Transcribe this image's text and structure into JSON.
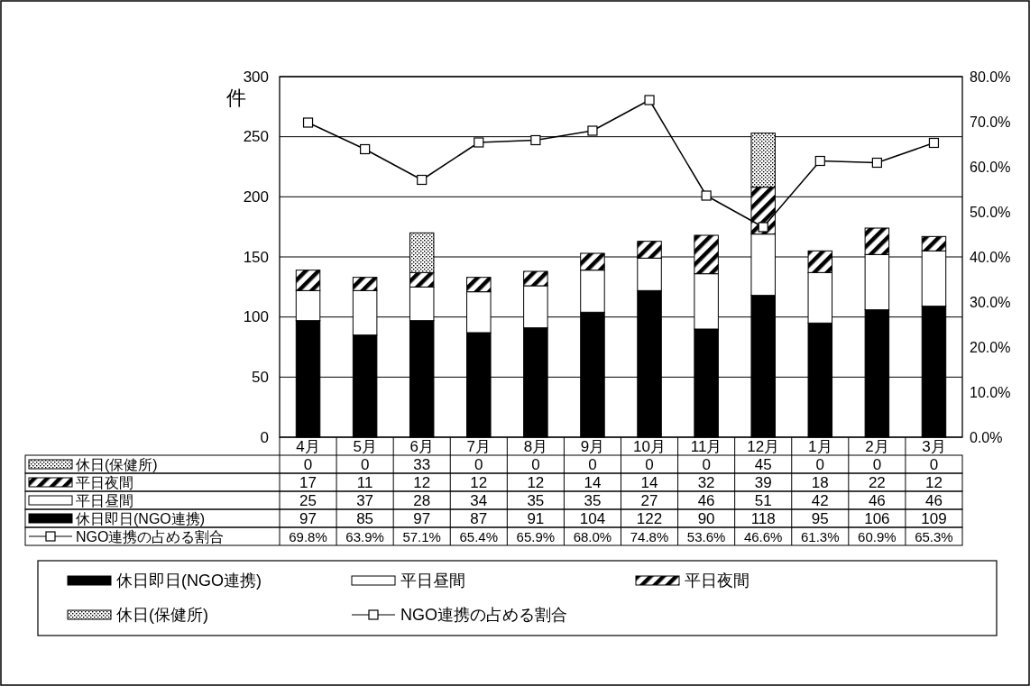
{
  "chart_data": {
    "type": "bar",
    "stacked": true,
    "ylabel": "件",
    "categories": [
      "4月",
      "5月",
      "6月",
      "7月",
      "8月",
      "9月",
      "10月",
      "11月",
      "12月",
      "1月",
      "2月",
      "3月"
    ],
    "series": [
      {
        "name": "休日即日(NGO連携)",
        "color": "#000000",
        "values": [
          97,
          85,
          97,
          87,
          91,
          104,
          122,
          90,
          118,
          95,
          106,
          109
        ]
      },
      {
        "name": "平日昼間",
        "color": "#ffffff",
        "values": [
          25,
          37,
          28,
          34,
          35,
          35,
          27,
          46,
          51,
          42,
          46,
          46
        ]
      },
      {
        "name": "平日夜間",
        "color": "#000000",
        "values": [
          17,
          11,
          12,
          12,
          12,
          14,
          14,
          32,
          39,
          18,
          22,
          12
        ]
      },
      {
        "name": "休日(保健所)",
        "color": "#000000",
        "values": [
          0,
          0,
          33,
          0,
          0,
          0,
          0,
          0,
          45,
          0,
          0,
          0
        ]
      },
      {
        "name": "NGO連携の占める割合",
        "type": "line",
        "axis": "y2",
        "color": "#000000",
        "values": [
          69.8,
          63.9,
          57.1,
          65.4,
          65.9,
          68.0,
          74.8,
          53.6,
          46.6,
          61.3,
          60.9,
          65.3
        ],
        "value_labels": [
          "69.8%",
          "63.9%",
          "57.1%",
          "65.4%",
          "65.9%",
          "68.0%",
          "74.8%",
          "53.6%",
          "46.6%",
          "61.3%",
          "60.9%",
          "65.3%"
        ]
      }
    ],
    "ylim": [
      0,
      300
    ],
    "yticks": [
      0,
      50,
      100,
      150,
      200,
      250,
      300
    ],
    "y2lim": [
      0,
      80
    ],
    "y2ticks": [
      {
        "value": 0,
        "label": "0.0%"
      },
      {
        "value": 10,
        "label": "10.0%"
      },
      {
        "value": 20,
        "label": "20.0%"
      },
      {
        "value": 30,
        "label": "30.0%"
      },
      {
        "value": 40,
        "label": "40.0%"
      },
      {
        "value": 50,
        "label": "50.0%"
      },
      {
        "value": 60,
        "label": "60.0%"
      },
      {
        "value": 70,
        "label": "70.0%"
      },
      {
        "value": 80,
        "label": "80.0%"
      }
    ],
    "grid": "y",
    "legend": "bottom",
    "marker": "square",
    "line_style": "solid",
    "data_labels": true
  }
}
